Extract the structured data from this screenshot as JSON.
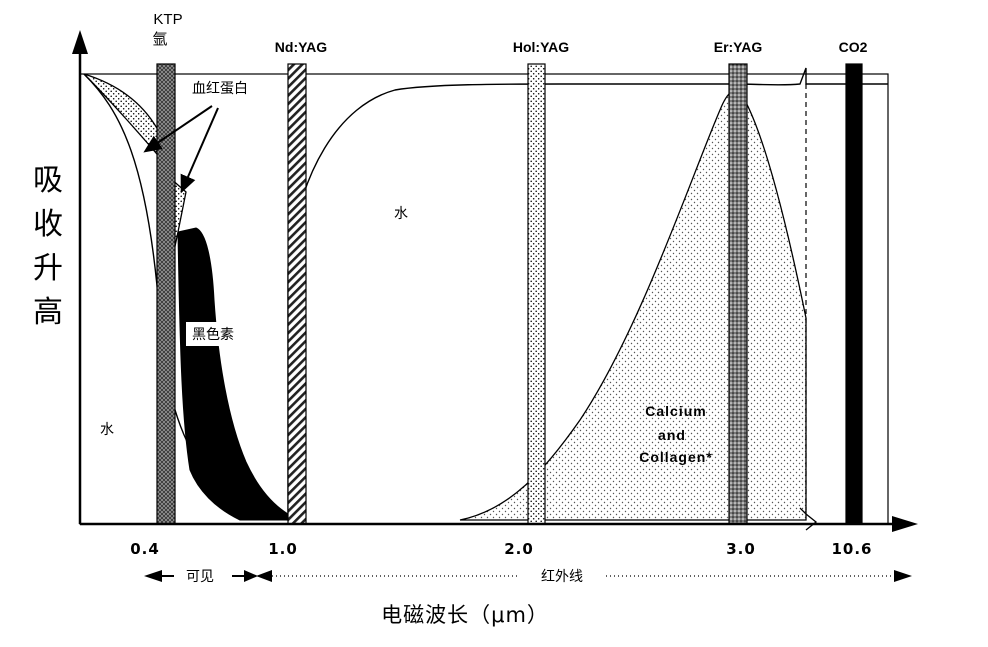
{
  "chart_data": {
    "type": "area",
    "ylabel": "吸收升高",
    "xlabel": "电磁波长（μm）",
    "x_ticks": [
      "0.4",
      "1.0",
      "2.0",
      "3.0",
      "10.6"
    ],
    "bands": [
      {
        "label": "可见",
        "from": 0.4,
        "to": 0.8
      },
      {
        "label": "红外线",
        "from": 0.8,
        "to": 10.6
      }
    ],
    "lasers": [
      {
        "label": "KTP",
        "sublabel": "氩",
        "wavelength": 0.53,
        "pattern": "cross-hatch"
      },
      {
        "label": "Nd:YAG",
        "wavelength": 1.06,
        "pattern": "diagonal-hatch"
      },
      {
        "label": "Hol:YAG",
        "wavelength": 2.1,
        "pattern": "dotted"
      },
      {
        "label": "Er:YAG",
        "wavelength": 2.94,
        "pattern": "dense-dotted"
      },
      {
        "label": "CO2",
        "wavelength": 10.6,
        "pattern": "solid"
      }
    ],
    "series": [
      {
        "name": "血红蛋白",
        "fill": "dotted"
      },
      {
        "name": "黑色素",
        "fill": "solid-black"
      },
      {
        "name": "水",
        "fill": "none"
      },
      {
        "name": "Calcium and Collagen*",
        "fill": "dotted"
      }
    ],
    "annotations": [
      "水",
      "水",
      "血红蛋白",
      "黑色素",
      "Calcium",
      "and",
      "Collagen*"
    ]
  },
  "labels": {
    "ylabel_chars": [
      "吸",
      "收",
      "升",
      "高"
    ],
    "hemoglobin": "血红蛋白",
    "melanin": "黑色素",
    "water_left": "水",
    "water_mid": "水",
    "calcium_lines": [
      "Calcium",
      "and",
      "Collagen*"
    ],
    "ktp_line1": "KTP",
    "ktp_line2": "氩",
    "ndyag": "Nd:YAG",
    "holyag": "Hol:YAG",
    "eryag": "Er:YAG",
    "co2": "CO2",
    "band_visible": "可见",
    "band_infrared": "红外线",
    "xlabel": "电磁波长（μm）",
    "ticks": [
      "0.4",
      "1.0",
      "2.0",
      "3.0",
      "10.6"
    ]
  }
}
